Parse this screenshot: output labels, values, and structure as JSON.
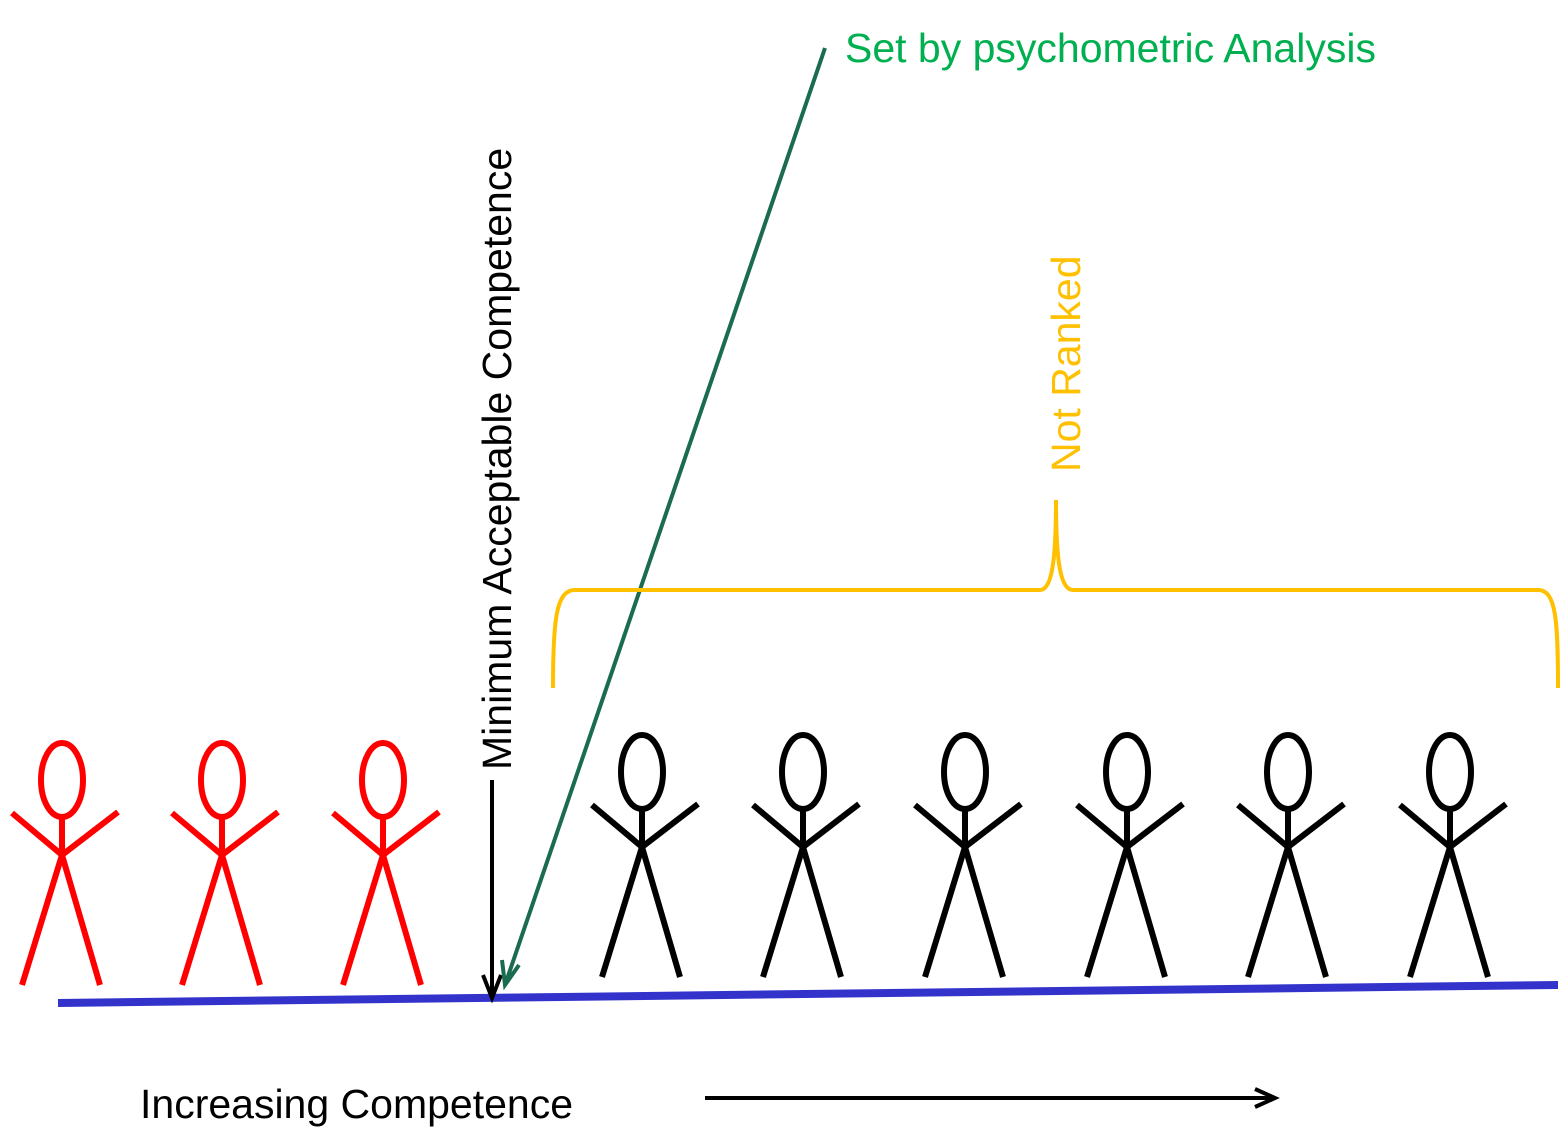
{
  "labels": {
    "psychometric": "Set by psychometric Analysis",
    "threshold": "Minimum Acceptable Competence",
    "not_ranked": "Not Ranked",
    "axis": "Increasing Competence"
  }
}
